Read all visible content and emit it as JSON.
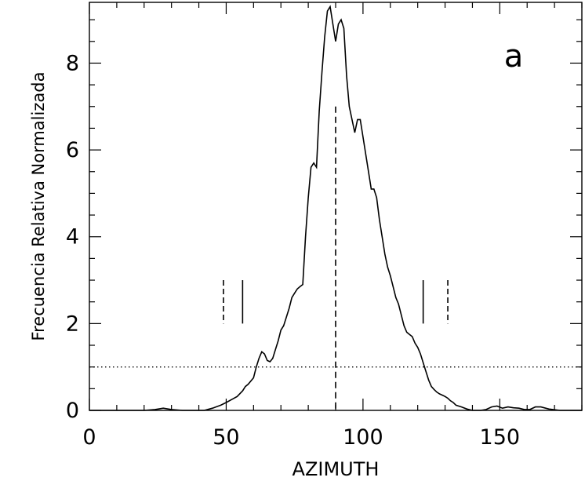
{
  "chart_data": {
    "type": "line",
    "xlabel": "AZIMUTH",
    "ylabel": "Frecuencia Relativa Normalizada",
    "panel_label": "a",
    "xlim": [
      0,
      180
    ],
    "ylim": [
      0,
      9.4
    ],
    "xticks": [
      0,
      50,
      100,
      150
    ],
    "yticks": [
      0,
      2,
      4,
      6,
      8
    ],
    "grid": false,
    "series": [
      {
        "x": [
          0,
          20,
          24,
          27,
          30,
          34,
          38,
          42,
          45,
          48,
          50,
          52,
          54,
          56,
          57,
          58,
          60,
          61,
          62,
          63,
          64,
          65,
          66,
          67,
          68,
          69,
          70,
          71,
          72,
          73,
          74,
          75,
          76,
          77,
          78,
          79,
          80,
          81,
          82,
          83,
          84,
          85,
          86,
          87,
          88,
          89,
          90,
          91,
          92,
          93,
          94,
          95,
          96,
          97,
          98,
          99,
          100,
          101,
          102,
          103,
          104,
          105,
          106,
          107,
          108,
          109,
          110,
          111,
          112,
          113,
          114,
          115,
          116,
          117,
          118,
          119,
          120,
          121,
          122,
          123,
          124,
          125,
          126,
          127,
          128,
          129,
          130,
          131,
          132,
          133,
          134,
          136,
          138,
          140,
          143,
          145,
          147,
          149,
          151,
          153,
          155,
          157,
          159,
          161,
          163,
          165,
          168,
          172,
          180
        ],
        "y": [
          0,
          0,
          0.02,
          0.05,
          0.02,
          0,
          0,
          0,
          0.05,
          0.12,
          0.18,
          0.25,
          0.32,
          0.45,
          0.55,
          0.6,
          0.75,
          1.0,
          1.2,
          1.35,
          1.3,
          1.15,
          1.12,
          1.2,
          1.4,
          1.6,
          1.85,
          1.95,
          2.15,
          2.35,
          2.6,
          2.7,
          2.8,
          2.85,
          2.9,
          4.0,
          4.9,
          5.6,
          5.7,
          5.6,
          6.9,
          7.8,
          8.6,
          9.2,
          9.3,
          8.9,
          8.5,
          8.9,
          9.0,
          8.8,
          7.7,
          7.0,
          6.7,
          6.4,
          6.7,
          6.7,
          6.3,
          5.9,
          5.5,
          5.1,
          5.1,
          4.9,
          4.4,
          4.0,
          3.6,
          3.3,
          3.1,
          2.85,
          2.6,
          2.45,
          2.2,
          1.95,
          1.8,
          1.75,
          1.7,
          1.55,
          1.45,
          1.3,
          1.1,
          0.9,
          0.7,
          0.55,
          0.48,
          0.42,
          0.38,
          0.35,
          0.32,
          0.28,
          0.22,
          0.18,
          0.12,
          0.08,
          0.03,
          0,
          0,
          0.02,
          0.08,
          0.1,
          0.05,
          0.08,
          0.06,
          0.05,
          0.02,
          0.02,
          0.08,
          0.08,
          0.03,
          0,
          0
        ]
      }
    ],
    "reference_lines": {
      "horizontal_dotted_y": 1,
      "vertical_dashed_center": {
        "x": 90,
        "y_top": 7.0
      },
      "dashed_markers": {
        "x": [
          49,
          131
        ],
        "y_range": [
          2.0,
          3.0
        ]
      },
      "solid_markers": {
        "x": [
          56,
          122
        ],
        "y_range": [
          2.0,
          3.0
        ]
      }
    }
  }
}
